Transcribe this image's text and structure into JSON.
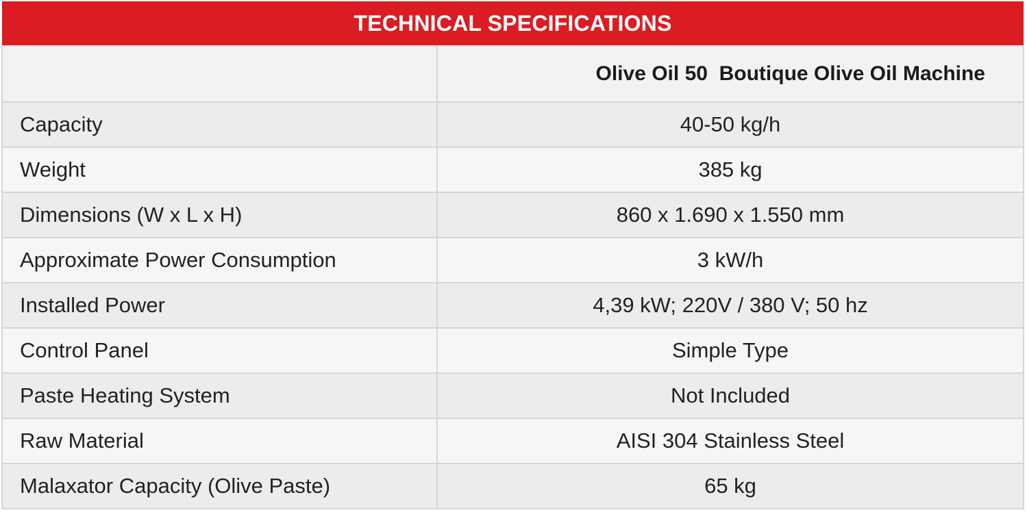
{
  "title": "TECHNICAL SPECIFICATIONS",
  "product": "Olive Oil 50  Boutique Olive Oil Machine",
  "rows": [
    {
      "label": "Capacity",
      "value": "40-50 kg/h"
    },
    {
      "label": "Weight",
      "value": "385 kg"
    },
    {
      "label": "Dimensions (W x L x H)",
      "value": "860 x 1.690 x 1.550 mm"
    },
    {
      "label": "Approximate Power Consumption",
      "value": "3 kW/h"
    },
    {
      "label": "Installed Power",
      "value": "4,39 kW; 220V / 380 V; 50 hz"
    },
    {
      "label": "Control Panel",
      "value": "Simple Type"
    },
    {
      "label": "Paste Heating System",
      "value": "Not Included"
    },
    {
      "label": "Raw Material",
      "value": "AISI 304 Stainless Steel"
    },
    {
      "label": "Malaxator Capacity (Olive Paste)",
      "value": "65 kg"
    }
  ],
  "colors": {
    "title_background": "#db1c23",
    "title_text": "#ffffff"
  }
}
